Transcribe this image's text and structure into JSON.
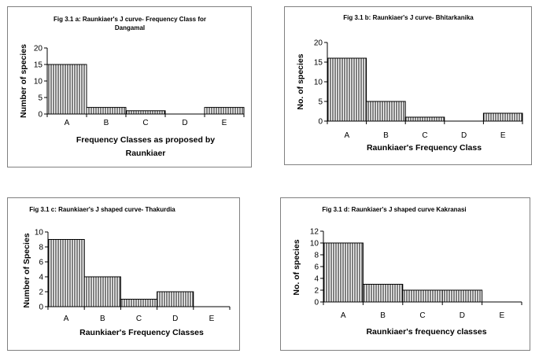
{
  "chart_data": [
    {
      "type": "bar",
      "title_lines": [
        "Fig 3.1 a: Raunkiaer's J curve- Frequency Class for",
        "Dangamal"
      ],
      "categories": [
        "A",
        "B",
        "C",
        "D",
        "E"
      ],
      "values": [
        15,
        2,
        1,
        0,
        2
      ],
      "yticks": [
        0,
        5,
        10,
        15,
        20
      ],
      "ylim": [
        0,
        20
      ],
      "xlabel_lines": [
        "Frequency Classes as proposed by",
        "Raunkiaer"
      ],
      "ylabel": "Number of species",
      "grid": false,
      "bar_pattern": "vertical-hatch"
    },
    {
      "type": "bar",
      "title_lines": [
        "Fig 3.1 b: Raunkiaer's J curve- Bhitarkanika"
      ],
      "categories": [
        "A",
        "B",
        "C",
        "D",
        "E"
      ],
      "values": [
        16,
        5,
        1,
        0,
        2
      ],
      "yticks": [
        0,
        5,
        10,
        15,
        20
      ],
      "ylim": [
        0,
        20
      ],
      "xlabel_lines": [
        "Raunkiaer's Frequency Class"
      ],
      "ylabel": "No. of species",
      "grid": false,
      "bar_pattern": "vertical-hatch"
    },
    {
      "type": "bar",
      "title_lines": [
        "Fig 3.1 c: Raunkiaer's J shaped curve- Thakurdia"
      ],
      "categories": [
        "A",
        "B",
        "C",
        "D",
        "E"
      ],
      "values": [
        9,
        4,
        1,
        2,
        0
      ],
      "yticks": [
        0,
        2,
        4,
        6,
        8,
        10
      ],
      "ylim": [
        0,
        10
      ],
      "xlabel_lines": [
        "Raunkiaer's Frequency Classes"
      ],
      "ylabel": "Number of Species",
      "grid": false,
      "bar_pattern": "vertical-hatch"
    },
    {
      "type": "bar",
      "title_lines": [
        "Fig 3.1 d: Raunkiaer's J shaped curve Kakranasi"
      ],
      "categories": [
        "A",
        "B",
        "C",
        "D",
        "E"
      ],
      "values": [
        10,
        3,
        2,
        2,
        0
      ],
      "yticks": [
        0,
        2,
        4,
        6,
        8,
        10,
        12
      ],
      "ylim": [
        0,
        12
      ],
      "xlabel_lines": [
        "Raunkiaer's frequency classes"
      ],
      "ylabel": "No. of species",
      "grid": false,
      "bar_pattern": "vertical-hatch"
    }
  ],
  "colors": {
    "bar_fill": "#ffffff",
    "hatch": "#000000",
    "frame": "#808080"
  }
}
